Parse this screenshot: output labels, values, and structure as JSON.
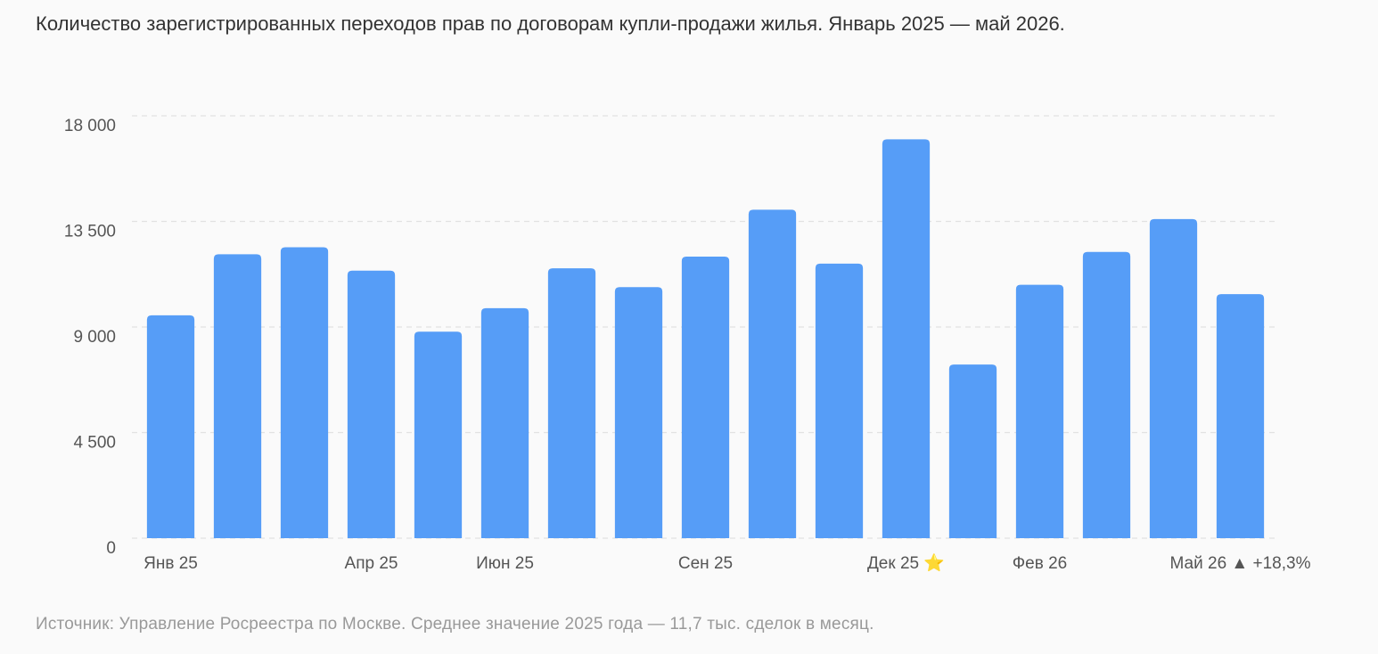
{
  "chart_data": {
    "type": "bar",
    "title": "Количество зарегистрированных переходов прав по договорам купли-продажи жилья. Январь 2025 — май 2026.",
    "source": "Источник: Управление Росреестра по Москве. Среднее значение 2025 года — 11,7 тыс. сделок в месяц.",
    "categories": [
      "Янв 25",
      null,
      null,
      "Апр 25",
      null,
      "Июн 25",
      null,
      null,
      "Сен 25",
      null,
      null,
      "Дек 25 ⭐",
      null,
      "Фев 26",
      null,
      null,
      "Май 26 ▲ +18,3%"
    ],
    "values": [
      9500,
      12100,
      12400,
      11400,
      8800,
      9800,
      11500,
      10700,
      12000,
      14000,
      11700,
      17000,
      7400,
      10800,
      12200,
      13600,
      10400
    ],
    "color": "#569df7",
    "ylim": [
      0,
      18000
    ],
    "yticks": [
      0,
      {
        "value": 4500,
        "label": "4 500"
      },
      {
        "value": 9000,
        "label": "9 000"
      },
      {
        "value": 13500,
        "label": "13 500"
      },
      {
        "value": 18000,
        "label": "18 000"
      }
    ],
    "grid": true
  }
}
